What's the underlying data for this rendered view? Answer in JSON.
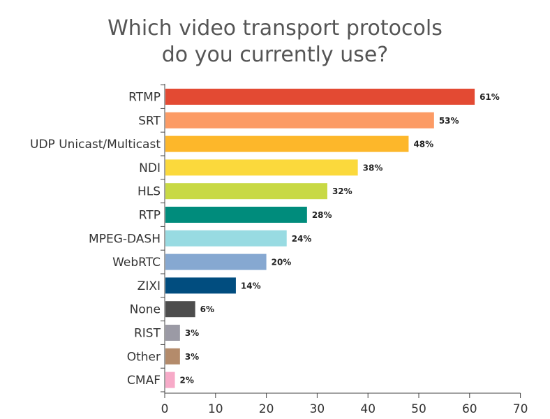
{
  "chart_data": {
    "type": "bar",
    "orientation": "horizontal",
    "title": [
      "Which video transport protocols",
      "do you currently use?"
    ],
    "categories": [
      "RTMP",
      "SRT",
      "UDP Unicast/Multicast",
      "NDI",
      "HLS",
      "RTP",
      "MPEG-DASH",
      "WebRTC",
      "ZIXI",
      "None",
      "RIST",
      "Other",
      "CMAF"
    ],
    "values": [
      61,
      53,
      48,
      38,
      32,
      28,
      24,
      20,
      14,
      6,
      3,
      3,
      2
    ],
    "value_labels": [
      "61%",
      "53%",
      "48%",
      "38%",
      "32%",
      "28%",
      "24%",
      "20%",
      "14%",
      "6%",
      "3%",
      "3%",
      "2%"
    ],
    "colors": [
      "#e34a33",
      "#fc9b65",
      "#fdb72a",
      "#fbd93c",
      "#c8d944",
      "#008c7c",
      "#98dbe2",
      "#86a8d1",
      "#014d7f",
      "#4d4d4d",
      "#9b9aa5",
      "#b48b6b",
      "#f7aac8"
    ],
    "xlim": [
      0,
      70
    ],
    "xticks": [
      0,
      10,
      20,
      30,
      40,
      50,
      60,
      70
    ],
    "xlabel": "",
    "ylabel": "",
    "grid": false
  }
}
